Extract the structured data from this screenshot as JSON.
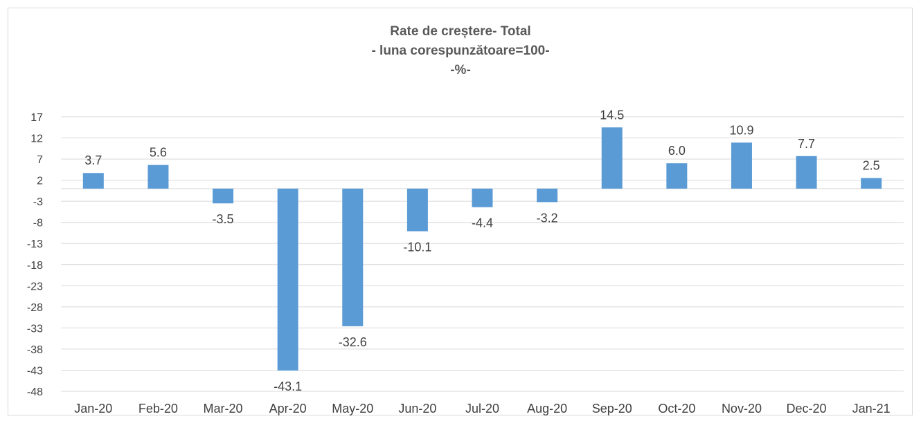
{
  "chart_data": {
    "type": "bar",
    "title_lines": [
      "Rate de creștere- Total",
      "- luna corespunzătoare=100-",
      "-%-"
    ],
    "categories": [
      "Jan-20",
      "Feb-20",
      "Mar-20",
      "Apr-20",
      "May-20",
      "Jun-20",
      "Jul-20",
      "Aug-20",
      "Sep-20",
      "Oct-20",
      "Nov-20",
      "Dec-20",
      "Jan-21"
    ],
    "values": [
      3.7,
      5.6,
      -3.5,
      -43.1,
      -32.6,
      -10.1,
      -4.4,
      -3.2,
      14.5,
      6.0,
      10.9,
      7.7,
      2.5
    ],
    "value_labels": [
      "3.7",
      "5.6",
      "-3.5",
      "-43.1",
      "-32.6",
      "-10.1",
      "-4.4",
      "-3.2",
      "14.5",
      "6.0",
      "10.9",
      "7.7",
      "2.5"
    ],
    "yticks": [
      17,
      12,
      7,
      2,
      -3,
      -8,
      -13,
      -18,
      -23,
      -28,
      -33,
      -38,
      -43,
      -48
    ],
    "ylim": [
      -48,
      17
    ],
    "grid": true,
    "legend": "none",
    "bar_color": "#5b9bd5",
    "grid_color": "#d9d9d9"
  }
}
